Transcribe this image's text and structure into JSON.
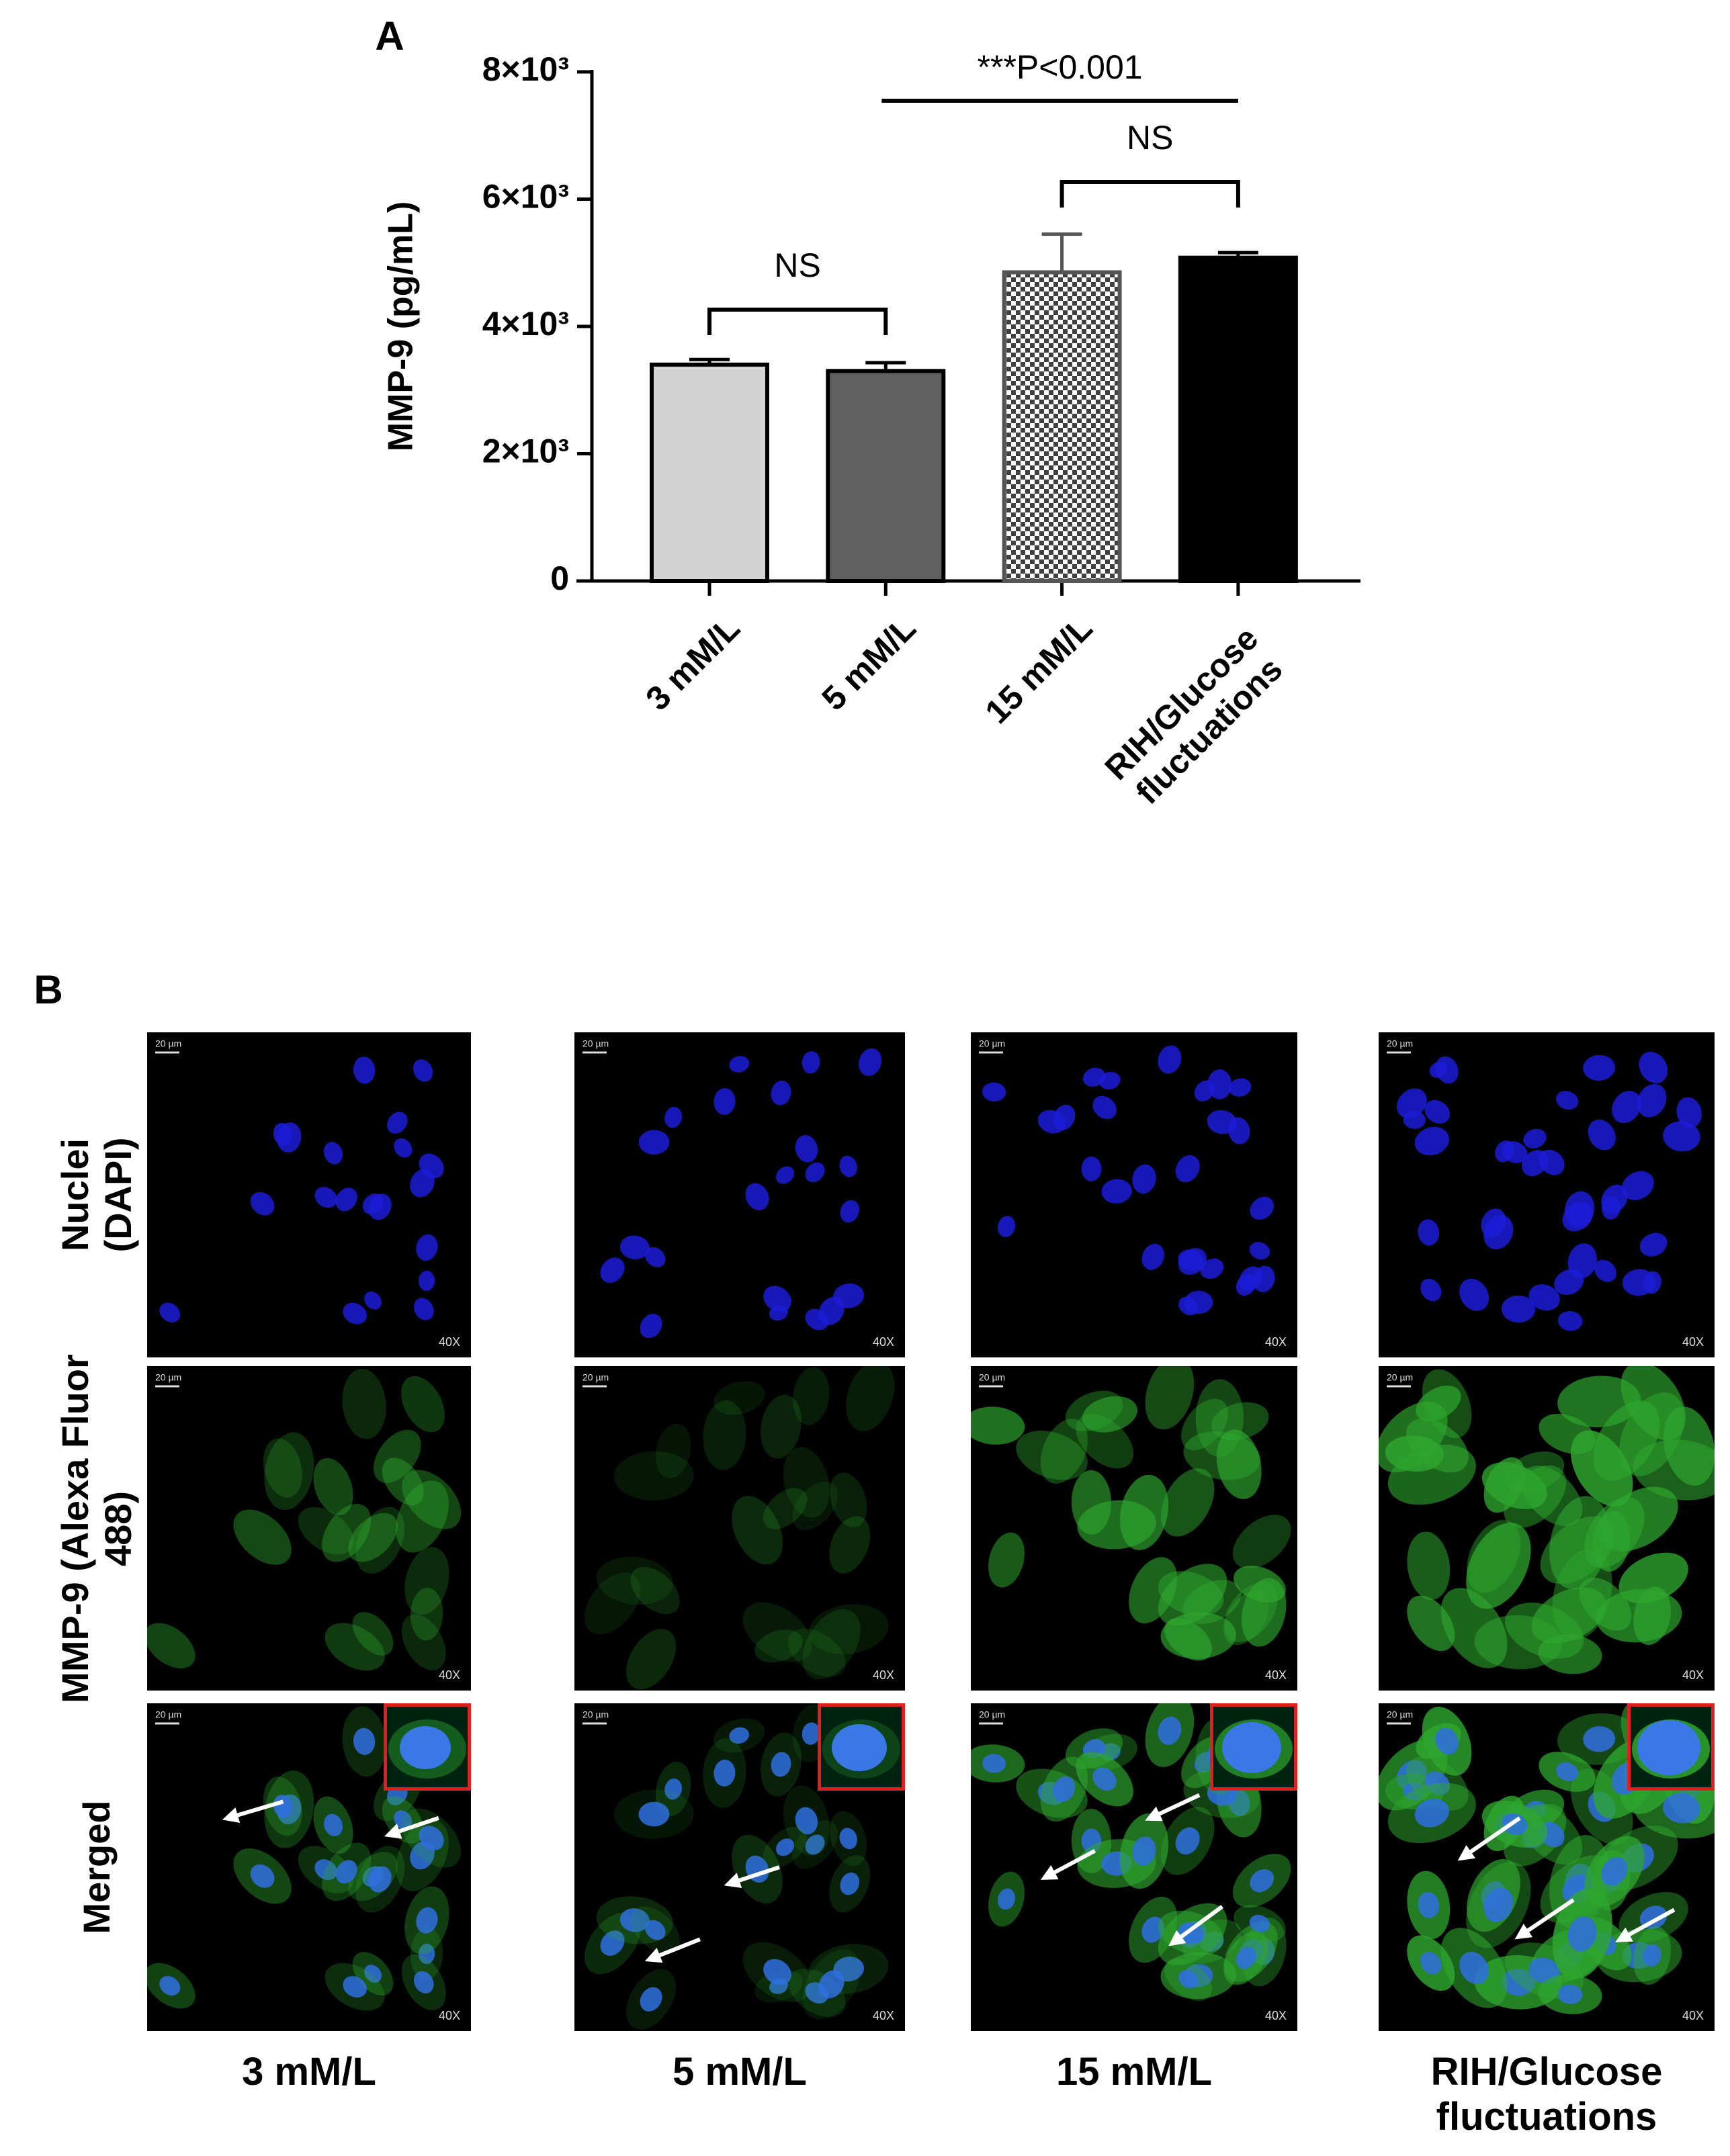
{
  "chart_data": {
    "type": "bar",
    "panel_label": "A",
    "y_label": "MMP-9 (pg/mL)",
    "categories": [
      "3 mM/L",
      "5 mM/L",
      "15 mM/L",
      "RIH/Glucose fluctuations"
    ],
    "values": [
      3400,
      3300,
      4850,
      5080
    ],
    "errors": [
      80,
      130,
      600,
      80
    ],
    "colors": [
      "#d3d3d3",
      "#606060",
      "#404040",
      "#000000"
    ],
    "fill_patterns": [
      "solid",
      "solid",
      "checker",
      "solid"
    ],
    "ylim": [
      0,
      8000
    ],
    "yticks": [
      0,
      {
        "value": 2000,
        "label": "2×10³"
      },
      {
        "value": 4000,
        "label": "4×10³"
      },
      {
        "value": 6000,
        "label": "6×10³"
      },
      {
        "value": 8000,
        "label": "8×10³"
      }
    ],
    "annotations": [
      "***P<0.001",
      "NS",
      "NS"
    ]
  },
  "panel_b": {
    "panel_label": "B",
    "rows": [
      "Nuclei (DAPI)",
      "MMP-9 (Alexa Fluor 488)",
      "Merged"
    ],
    "columns": [
      "3 mM/L",
      "5 mM/L",
      "15 mM/L",
      "RIH/Glucose fluctuations"
    ],
    "scale_bar": "20 µm",
    "magnification": "40X"
  }
}
